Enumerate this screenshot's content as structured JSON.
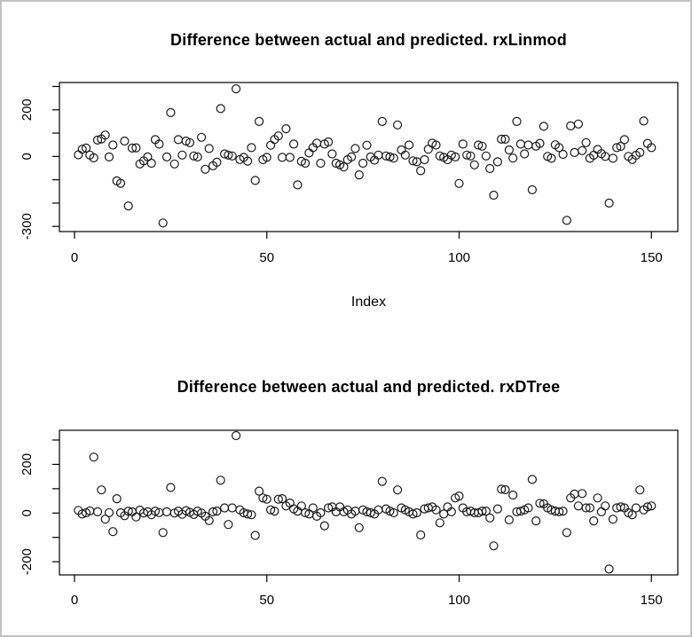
{
  "figure": {
    "background": "#ffffff",
    "border_color": "#c2c2c2",
    "point_color": "#1a1a1a",
    "axis_color": "#000000"
  },
  "chart_data": [
    {
      "type": "scatter",
      "title": "Difference between actual and predicted. rxLinmod",
      "xlabel": "Index",
      "ylabel": "",
      "marker": "open-circle",
      "n_points": 150,
      "x_description": "index 1..150",
      "xlim": [
        -3.92,
        156.86
      ],
      "ylim": [
        -322,
        317
      ],
      "x_ticks": [
        0,
        50,
        100,
        150
      ],
      "x_tick_labels": [
        "0",
        "50",
        "100",
        "150"
      ],
      "y_ticks": [
        -300,
        -200,
        -100,
        0,
        100,
        200,
        300
      ],
      "y_tick_labels": [
        "-300",
        "",
        "",
        "0",
        "",
        "200",
        ""
      ],
      "grid": false,
      "legend": "none",
      "values": [
        7,
        31,
        36,
        6,
        -6,
        70,
        75,
        92,
        -2,
        49,
        -105,
        -115,
        66,
        -212,
        36,
        37,
        -32,
        -19,
        -2,
        -29,
        72,
        53,
        -285,
        -2,
        188,
        -32,
        72,
        6,
        66,
        59,
        2,
        -2,
        82,
        -55,
        34,
        -40,
        -25,
        205,
        11,
        6,
        2,
        290,
        -13,
        -4,
        -20,
        38,
        -103,
        150,
        -14,
        -4,
        48,
        73,
        88,
        -4,
        119,
        -4,
        53,
        -122,
        -21,
        -29,
        15,
        38,
        57,
        -29,
        53,
        62,
        11,
        -29,
        -36,
        -45,
        -14,
        -2,
        34,
        -79,
        -29,
        48,
        -2,
        -16,
        6,
        150,
        2,
        -2,
        -7,
        135,
        28,
        6,
        49,
        -19,
        -23,
        -61,
        -14,
        31,
        57,
        49,
        2,
        -4,
        -14,
        6,
        -2,
        -116,
        53,
        6,
        2,
        -36,
        49,
        44,
        2,
        -52,
        -166,
        -23,
        74,
        74,
        28,
        -7,
        150,
        53,
        11,
        49,
        -143,
        44,
        56,
        129,
        0,
        -8,
        50,
        38,
        9,
        -274,
        131,
        17,
        139,
        25,
        59,
        -8,
        5,
        30,
        12,
        0,
        -200,
        -8,
        38,
        43,
        72,
        0,
        -13,
        5,
        17,
        152,
        56,
        38
      ]
    },
    {
      "type": "scatter",
      "title": "Difference between actual and predicted. rxDTree",
      "xlabel": "",
      "ylabel": "",
      "marker": "open-circle",
      "n_points": 150,
      "x_description": "index 1..150",
      "xlim": [
        -3.92,
        156.86
      ],
      "ylim": [
        -254,
        340
      ],
      "x_ticks": [
        0,
        50,
        100,
        150
      ],
      "x_tick_labels": [
        "0",
        "50",
        "100",
        "150"
      ],
      "y_ticks": [
        -200,
        -100,
        0,
        100,
        200,
        300
      ],
      "y_tick_labels": [
        "-200",
        "",
        "0",
        "",
        "200",
        ""
      ],
      "grid": false,
      "legend": "none",
      "values": [
        11,
        -4,
        1,
        9,
        230,
        5,
        95,
        -25,
        2,
        -76,
        59,
        1,
        -11,
        8,
        5,
        -16,
        12,
        0,
        5,
        -7,
        8,
        2,
        -80,
        5,
        105,
        0,
        8,
        -5,
        10,
        3,
        -6,
        8,
        0,
        -13,
        -31,
        5,
        8,
        135,
        21,
        -47,
        21,
        318,
        13,
        1,
        -4,
        -7,
        -92,
        90,
        62,
        57,
        13,
        8,
        57,
        59,
        29,
        41,
        17,
        8,
        29,
        1,
        -4,
        21,
        -13,
        1,
        -52,
        21,
        25,
        5,
        25,
        5,
        13,
        -4,
        8,
        -60,
        13,
        5,
        1,
        -4,
        13,
        130,
        17,
        8,
        1,
        95,
        21,
        13,
        5,
        -4,
        1,
        -90,
        17,
        21,
        25,
        13,
        -40,
        -4,
        25,
        5,
        62,
        70,
        21,
        5,
        8,
        1,
        1,
        8,
        8,
        -20,
        -135,
        17,
        98,
        96,
        -28,
        74,
        5,
        8,
        13,
        21,
        138,
        -32,
        40,
        38,
        21,
        13,
        8,
        5,
        8,
        -80,
        62,
        78,
        29,
        80,
        21,
        21,
        -32,
        62,
        5,
        29,
        -230,
        -25,
        21,
        25,
        21,
        1,
        -7,
        21,
        95,
        13,
        25,
        29
      ]
    }
  ]
}
